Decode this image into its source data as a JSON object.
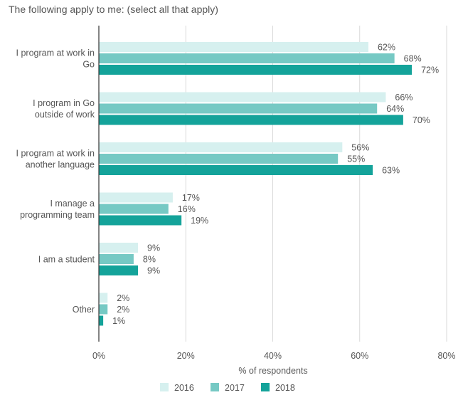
{
  "chart_data": {
    "type": "bar",
    "orientation": "horizontal",
    "title": "The following apply to me: (select all that apply)",
    "xlabel": "% of respondents",
    "ylabel": "",
    "xlim": [
      0,
      80
    ],
    "x_ticks": [
      "0%",
      "20%",
      "40%",
      "60%",
      "80%"
    ],
    "grid": true,
    "legend_position": "bottom",
    "categories": [
      [
        "I program at work in",
        "Go"
      ],
      [
        "I program in Go",
        "outside of work"
      ],
      [
        "I program at work in",
        "another language"
      ],
      [
        "I manage a",
        "programming team"
      ],
      [
        "I am a student"
      ],
      [
        "Other"
      ]
    ],
    "series": [
      {
        "name": "2016",
        "color": "#d6f0ef",
        "values": [
          62,
          66,
          56,
          17,
          9,
          2
        ],
        "labels": [
          "62%",
          "66%",
          "56%",
          "17%",
          "9%",
          "2%"
        ]
      },
      {
        "name": "2017",
        "color": "#76c9c4",
        "values": [
          68,
          64,
          55,
          16,
          8,
          2
        ],
        "labels": [
          "68%",
          "64%",
          "55%",
          "16%",
          "8%",
          "2%"
        ]
      },
      {
        "name": "2018",
        "color": "#14a39a",
        "values": [
          72,
          70,
          63,
          19,
          9,
          1
        ],
        "labels": [
          "72%",
          "70%",
          "63%",
          "19%",
          "9%",
          "1%"
        ]
      }
    ]
  }
}
